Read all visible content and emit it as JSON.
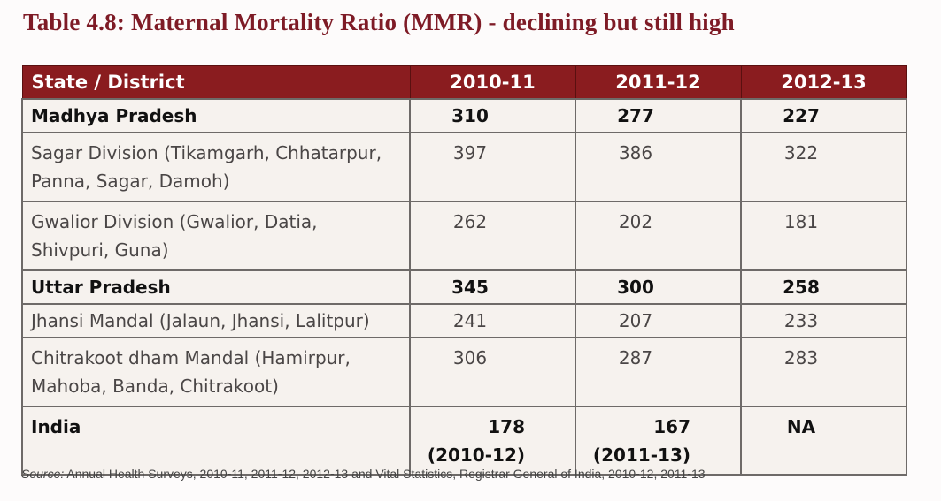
{
  "title": "Table 4.8: Maternal Mortality Ratio (MMR) - declining but still high",
  "colors": {
    "title": "#7e1b26",
    "header_bg": "#8a1c1f",
    "cell_bg": "#f6f2ee",
    "border": "#6e6a68"
  },
  "table": {
    "headers": [
      "State / District",
      "2010-11",
      "2011-12",
      "2012-13"
    ],
    "rows": [
      {
        "label": "Madhya Pradesh",
        "bold": true,
        "values": [
          "310",
          "277",
          "227"
        ]
      },
      {
        "label": "Sagar Division (Tikamgarh, Chhatarpur, Panna, Sagar, Damoh)",
        "bold": false,
        "values": [
          "397",
          "386",
          "322"
        ]
      },
      {
        "label": "Gwalior Division (Gwalior, Datia, Shivpuri, Guna)",
        "bold": false,
        "values": [
          "262",
          "202",
          "181"
        ]
      },
      {
        "label": "Uttar Pradesh",
        "bold": true,
        "values": [
          "345",
          "300",
          "258"
        ]
      },
      {
        "label": "Jhansi Mandal (Jalaun, Jhansi, Lalitpur)",
        "bold": false,
        "values": [
          "241",
          "207",
          "233"
        ]
      },
      {
        "label": "Chitrakoot dham Mandal (Hamirpur, Mahoba, Banda, Chitrakoot)",
        "bold": false,
        "values": [
          "306",
          "287",
          "283"
        ]
      },
      {
        "label": "India",
        "bold": true,
        "values": [
          "178",
          "167",
          "NA"
        ],
        "sub": [
          "(2010-12)",
          "(2011-13)",
          ""
        ]
      }
    ]
  },
  "source": {
    "label": "Source:",
    "text": " Annual Health Surveys, 2010-11, 2011-12, 2012-13 and Vital Statistics, Registrar General of India, 2010-12, 2011-13"
  }
}
